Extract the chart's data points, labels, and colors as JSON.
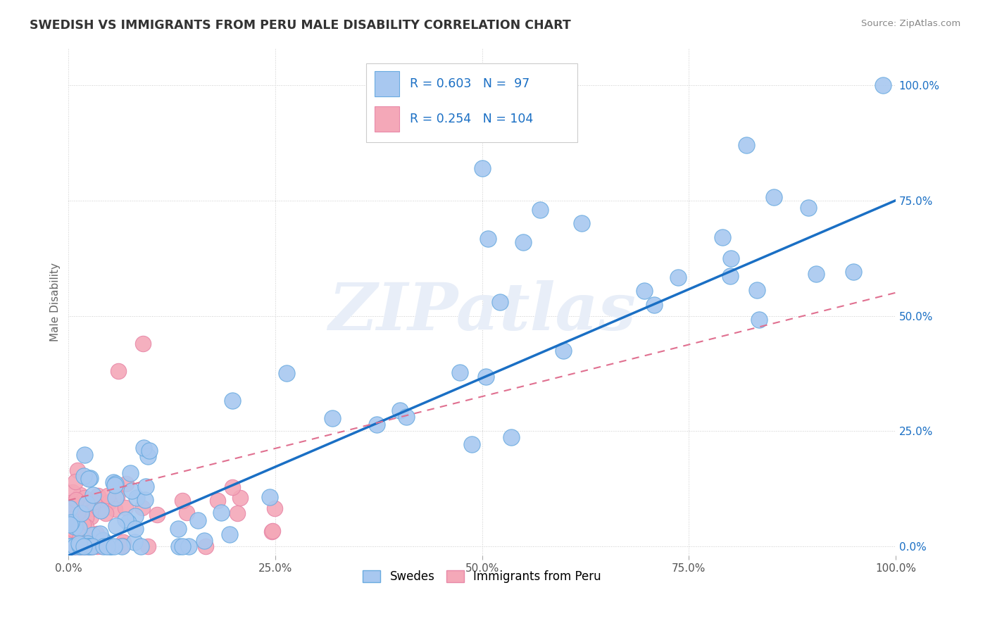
{
  "title": "SWEDISH VS IMMIGRANTS FROM PERU MALE DISABILITY CORRELATION CHART",
  "source": "Source: ZipAtlas.com",
  "ylabel": "Male Disability",
  "blue_r": "0.603",
  "blue_n": "97",
  "pink_r": "0.254",
  "pink_n": "104",
  "blue_color": "#a8c8f0",
  "pink_color": "#f4a8b8",
  "blue_edge_color": "#6aabe0",
  "pink_edge_color": "#e888a8",
  "blue_line_color": "#1a6fc4",
  "pink_line_color": "#e07090",
  "legend_label_swedes": "Swedes",
  "legend_label_peru": "Immigrants from Peru",
  "background_color": "#ffffff",
  "grid_color": "#cccccc",
  "title_color": "#333333",
  "source_color": "#888888",
  "tick_color": "#1a6fc4",
  "ylabel_color": "#666666",
  "watermark_text": "ZIPatlas",
  "watermark_color": "#e8eef8",
  "blue_line_x0": 0.0,
  "blue_line_y0": -0.02,
  "blue_line_x1": 1.0,
  "blue_line_y1": 0.75,
  "pink_line_x0": 0.0,
  "pink_line_y0": 0.1,
  "pink_line_x1": 1.0,
  "pink_line_y1": 0.55,
  "ytick_vals": [
    0.0,
    0.25,
    0.5,
    0.75,
    1.0
  ],
  "ytick_labels": [
    "0.0%",
    "25.0%",
    "50.0%",
    "75.0%",
    "100.0%"
  ],
  "xtick_vals": [
    0.0,
    0.25,
    0.5,
    0.75,
    1.0
  ],
  "xtick_labels": [
    "0.0%",
    "25.0%",
    "50.0%",
    "75.0%",
    "100.0%"
  ]
}
